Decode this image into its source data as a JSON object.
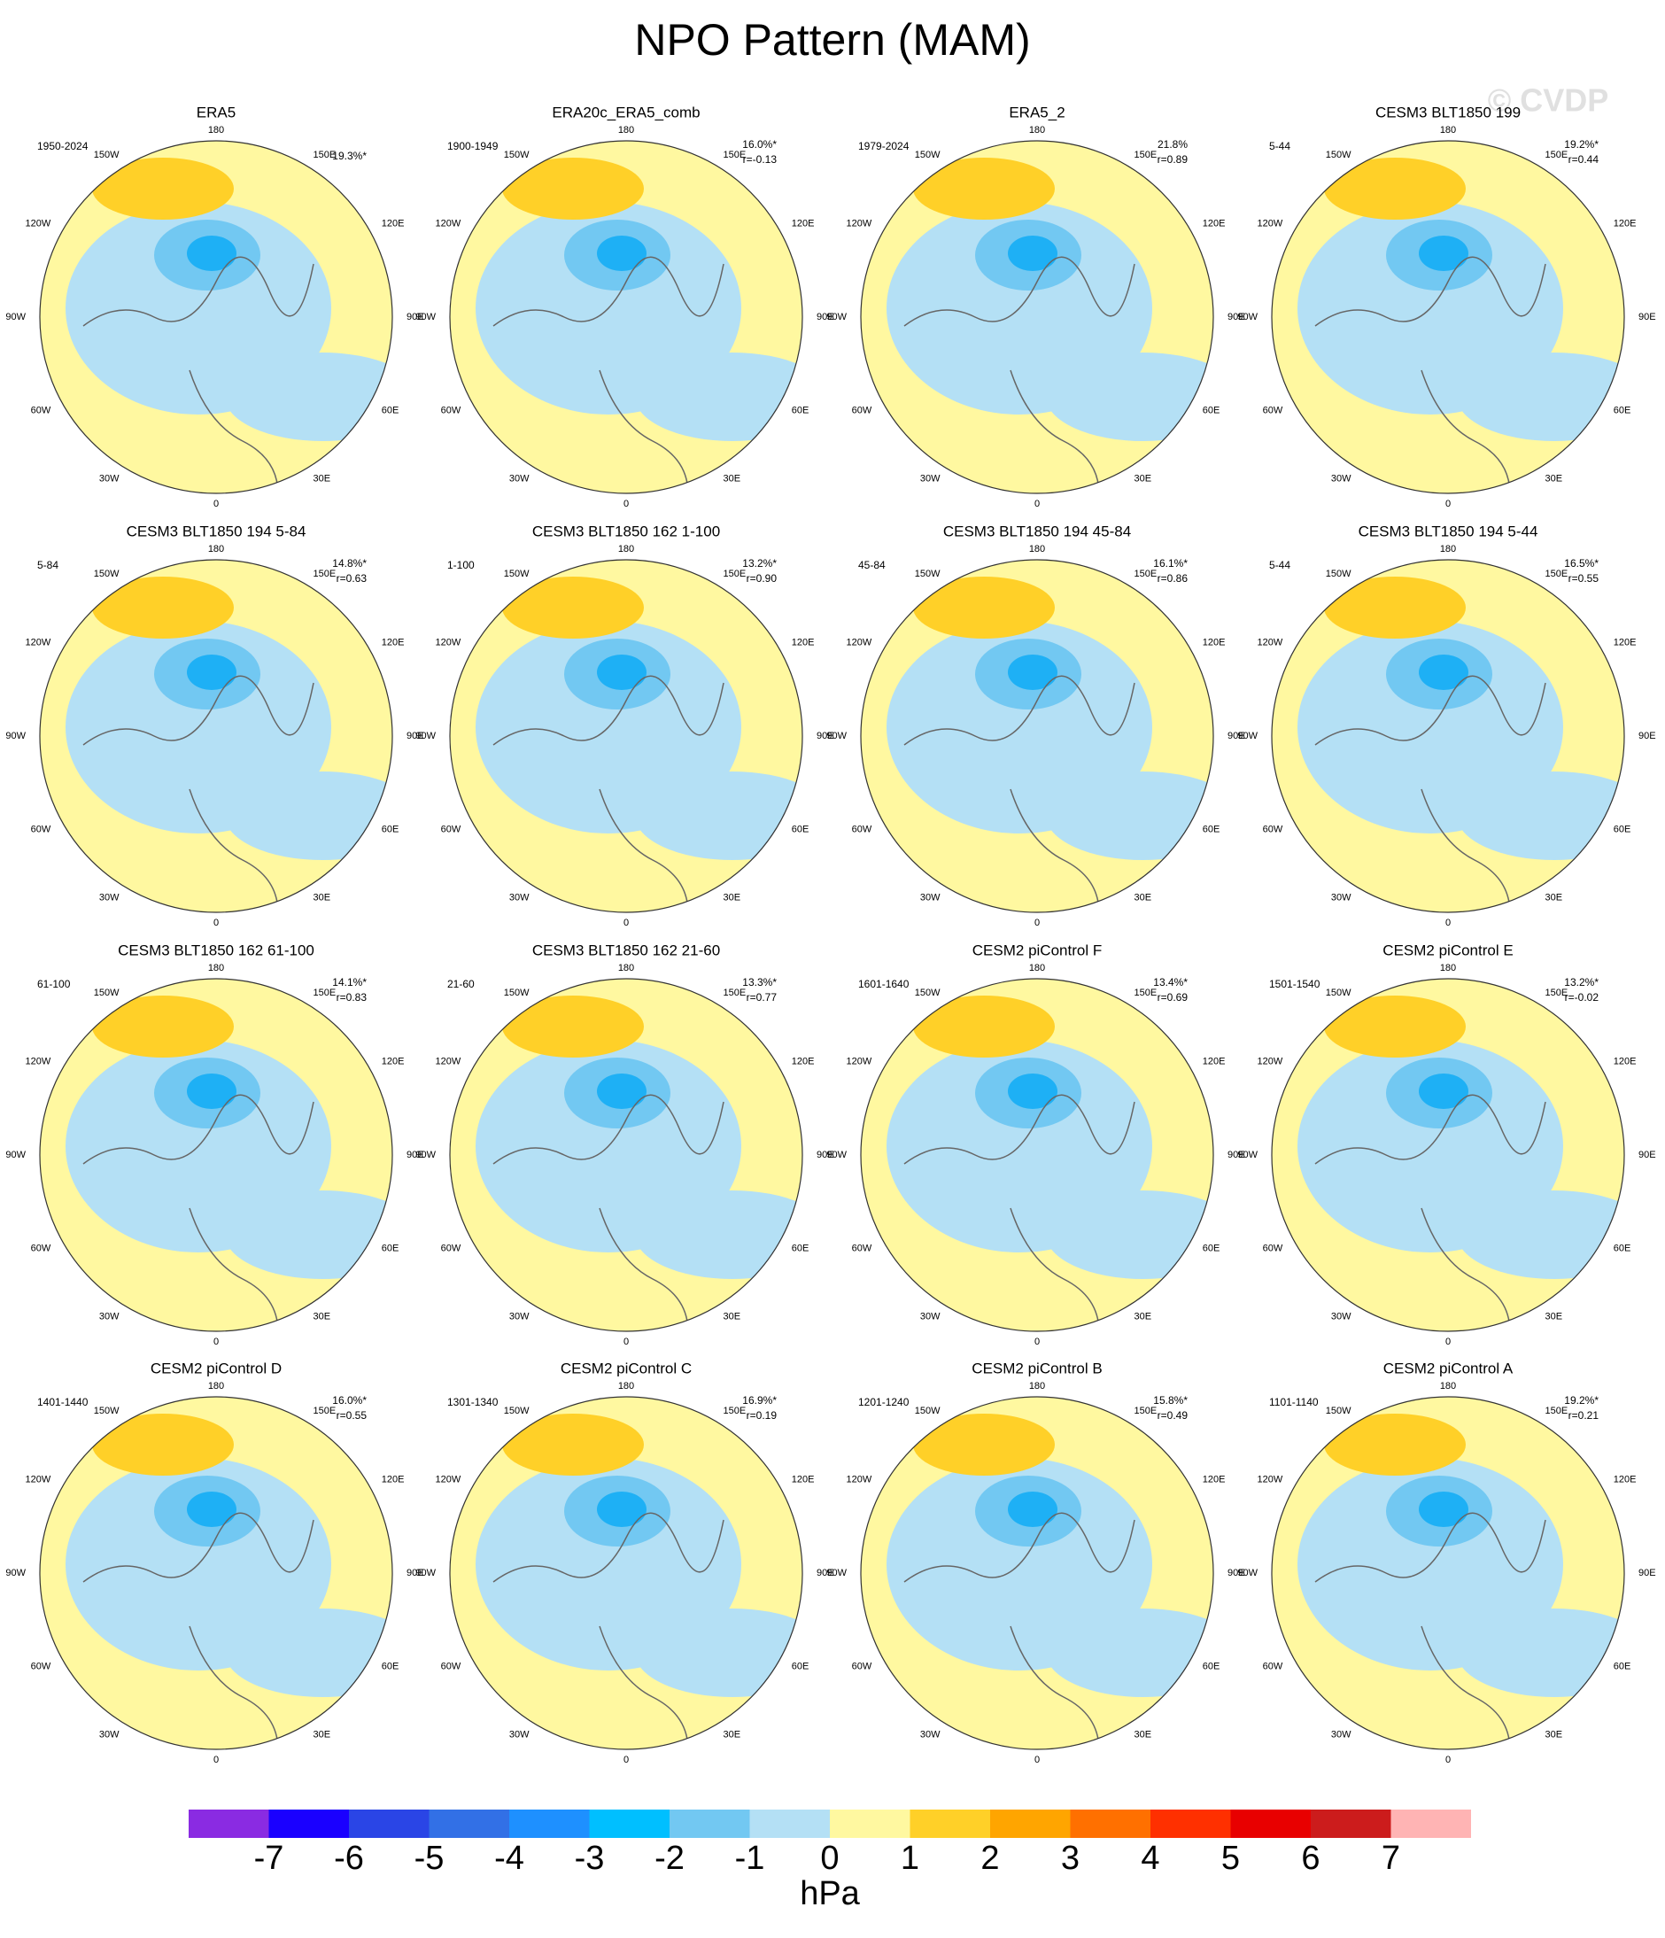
{
  "title": "NPO Pattern (MAM)",
  "watermark": "© CVDP",
  "longitude_labels": [
    "180",
    "150E",
    "120E",
    "90E",
    "60E",
    "30E",
    "0",
    "30W",
    "60W",
    "90W",
    "120W",
    "150W"
  ],
  "panels": [
    {
      "title": "ERA5",
      "period": "1950-2024",
      "variance": "19.3%*"
    },
    {
      "title": "ERA20c_ERA5_comb",
      "period": "1900-1949",
      "variance": "16.0%*",
      "r": "r=-0.13"
    },
    {
      "title": "ERA5_2",
      "period": "1979-2024",
      "variance": "21.8%",
      "r": "r=0.89"
    },
    {
      "title": "CESM3 BLT1850 199",
      "period": "5-44",
      "variance": "19.2%*",
      "r": "r=0.44"
    },
    {
      "title": "CESM3 BLT1850 194 5-84",
      "period": "5-84",
      "variance": "14.8%*",
      "r": "r=0.63"
    },
    {
      "title": "CESM3 BLT1850 162 1-100",
      "period": "1-100",
      "variance": "13.2%*",
      "r": "r=0.90"
    },
    {
      "title": "CESM3 BLT1850 194 45-84",
      "period": "45-84",
      "variance": "16.1%*",
      "r": "r=0.86"
    },
    {
      "title": "CESM3 BLT1850 194 5-44",
      "period": "5-44",
      "variance": "16.5%*",
      "r": "r=0.55"
    },
    {
      "title": "CESM3 BLT1850 162 61-100",
      "period": "61-100",
      "variance": "14.1%*",
      "r": "r=0.83"
    },
    {
      "title": "CESM3 BLT1850 162 21-60",
      "period": "21-60",
      "variance": "13.3%*",
      "r": "r=0.77"
    },
    {
      "title": "CESM2 piControl F",
      "period": "1601-1640",
      "variance": "13.4%*",
      "r": "r=0.69"
    },
    {
      "title": "CESM2 piControl E",
      "period": "1501-1540",
      "variance": "13.2%*",
      "r": "r=-0.02"
    },
    {
      "title": "CESM2 piControl D",
      "period": "1401-1440",
      "variance": "16.0%*",
      "r": "r=0.55"
    },
    {
      "title": "CESM2 piControl C",
      "period": "1301-1340",
      "variance": "16.9%*",
      "r": "r=0.19"
    },
    {
      "title": "CESM2 piControl B",
      "period": "1201-1240",
      "variance": "15.8%*",
      "r": "r=0.49"
    },
    {
      "title": "CESM2 piControl A",
      "period": "1101-1140",
      "variance": "19.2%*",
      "r": "r=0.21"
    }
  ],
  "colorbar": {
    "colors": [
      "#8a2be2",
      "#1a00ff",
      "#2a45e6",
      "#3270e6",
      "#1e90ff",
      "#00bfff",
      "#72c8f2",
      "#b4e0f5",
      "#fff8a0",
      "#ffd028",
      "#ffa500",
      "#ff7000",
      "#ff3000",
      "#e80000",
      "#cc1c1c",
      "#ffb4b4"
    ],
    "ticks": [
      -7,
      -6,
      -5,
      -4,
      -3,
      -2,
      -1,
      0,
      1,
      2,
      3,
      4,
      5,
      6,
      7
    ],
    "label": "hPa"
  }
}
